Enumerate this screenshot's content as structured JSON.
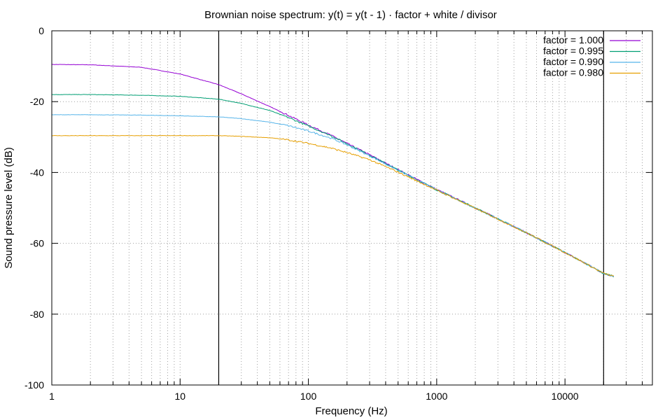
{
  "chart_data": {
    "type": "line",
    "title": "Brownian noise spectrum: y(t) = y(t - 1) · factor + white / divisor",
    "xlabel": "Frequency (Hz)",
    "ylabel": "Sound pressure level (dB)",
    "xscale": "log",
    "xlim": [
      1,
      48000
    ],
    "ylim": [
      -100,
      0
    ],
    "x_ticks": [
      1,
      10,
      100,
      1000,
      10000
    ],
    "x_tick_labels": [
      "1",
      "10",
      "100",
      "1000",
      "10000"
    ],
    "y_ticks": [
      0,
      -20,
      -40,
      -60,
      -80,
      -100
    ],
    "y_tick_labels": [
      "0",
      "-20",
      "-40",
      "-60",
      "-80",
      "-100"
    ],
    "vertical_markers": [
      20,
      20000
    ],
    "grid": true,
    "legend_position": "top-right",
    "x": [
      1,
      2,
      5,
      10,
      20,
      30,
      50,
      70,
      100,
      150,
      200,
      300,
      500,
      1000,
      2000,
      5000,
      10000,
      15000,
      20000,
      24000
    ],
    "series": [
      {
        "name": "factor = 1.000",
        "color": "#9400d3",
        "values": [
          -9.5,
          -9.6,
          -10.3,
          -12.2,
          -15.2,
          -17.8,
          -21.4,
          -23.9,
          -26.6,
          -29.5,
          -31.8,
          -35.0,
          -39.2,
          -44.8,
          -50.0,
          -57.0,
          -62.6,
          -66.0,
          -68.5,
          -69.3
        ]
      },
      {
        "name": "factor = 0.995",
        "color": "#009e73",
        "values": [
          -18.0,
          -18.0,
          -18.2,
          -18.5,
          -19.3,
          -20.5,
          -22.5,
          -24.5,
          -26.9,
          -29.6,
          -31.9,
          -35.1,
          -39.3,
          -44.9,
          -50.0,
          -57.0,
          -62.6,
          -66.0,
          -68.5,
          -69.3
        ]
      },
      {
        "name": "factor = 0.990",
        "color": "#56b4e9",
        "values": [
          -23.7,
          -23.7,
          -23.8,
          -24.0,
          -24.3,
          -24.8,
          -25.8,
          -26.8,
          -28.3,
          -30.3,
          -32.2,
          -35.3,
          -39.4,
          -44.9,
          -50.0,
          -57.0,
          -62.6,
          -66.0,
          -68.5,
          -69.3
        ]
      },
      {
        "name": "factor = 0.980",
        "color": "#e69f00",
        "values": [
          -29.6,
          -29.6,
          -29.6,
          -29.6,
          -29.6,
          -29.8,
          -30.2,
          -30.8,
          -31.8,
          -33.1,
          -34.4,
          -36.4,
          -39.9,
          -45.0,
          -50.1,
          -57.0,
          -62.6,
          -66.0,
          -68.5,
          -69.3
        ]
      }
    ]
  }
}
